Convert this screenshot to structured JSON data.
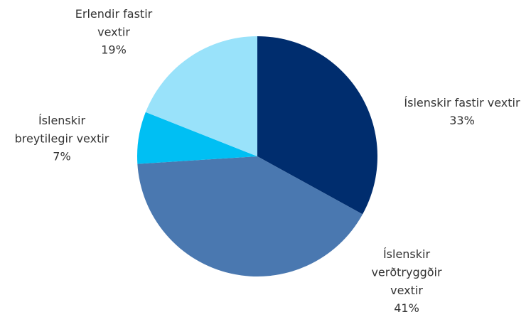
{
  "chart_data": {
    "type": "pie",
    "categories": [
      "Íslenskir fastir vextir",
      "Íslenskir\nverðtryggðir\nvextir",
      "Íslenskir\nbreytilegir vextir",
      "Erlendir fastir\nvextir"
    ],
    "values": [
      33,
      41,
      7,
      19
    ],
    "value_labels": [
      "33%",
      "41%",
      "7%",
      "19%"
    ],
    "colors": [
      "#002d6e",
      "#4a78b0",
      "#00bff3",
      "#99e2fa"
    ]
  }
}
